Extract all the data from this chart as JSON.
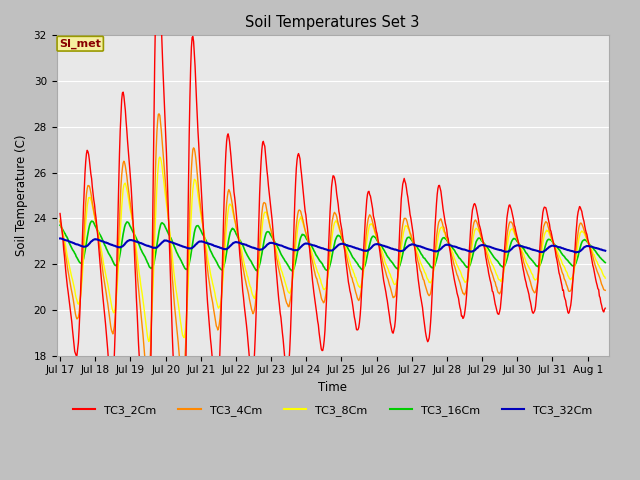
{
  "title": "Soil Temperatures Set 3",
  "xlabel": "Time",
  "ylabel": "Soil Temperature (C)",
  "ylim": [
    18,
    32
  ],
  "yticks": [
    18,
    20,
    22,
    24,
    26,
    28,
    30,
    32
  ],
  "fig_bg_color": "#c0c0c0",
  "plot_bg_color": "#e8e8e8",
  "annotation_text": "SI_met",
  "annotation_bg": "#f5f0a0",
  "annotation_border": "#999900",
  "annotation_text_color": "#880000",
  "colors": {
    "TC3_2Cm": "#ff0000",
    "TC3_4Cm": "#ff8800",
    "TC3_8Cm": "#ffff00",
    "TC3_16Cm": "#00cc00",
    "TC3_32Cm": "#0000bb"
  },
  "xtick_labels": [
    "Jul 17",
    "Jul 18",
    "Jul 19",
    "Jul 20",
    "Jul 21",
    "Jul 22",
    "Jul 23",
    "Jul 24",
    "Jul 25",
    "Jul 26",
    "Jul 27",
    "Jul 28",
    "Jul 29",
    "Jul 30",
    "Jul 31",
    "Aug 1"
  ],
  "n_points": 744,
  "start_day": 0,
  "end_day": 15.5
}
